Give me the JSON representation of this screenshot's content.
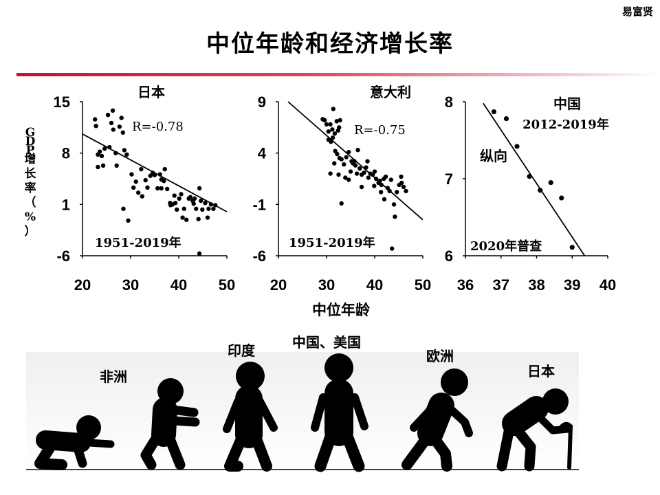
{
  "header": {
    "author": "易富贤",
    "title": "中位年龄和经济增长率"
  },
  "chart_data": [
    {
      "type": "scatter",
      "name": "japan",
      "label": "日本",
      "period": "1951-2019年",
      "r_text": "R=-0.78",
      "xlim": [
        20,
        50
      ],
      "ylim": [
        -6,
        15
      ],
      "xticks": [
        "20",
        "30",
        "40",
        "50"
      ],
      "yticks": [
        "15",
        "8",
        "1",
        "-6"
      ],
      "ylabel": "GDP增长率（%）",
      "trend": [
        [
          20,
          10.6
        ],
        [
          50,
          0.0
        ]
      ],
      "points": [
        [
          22.6,
          12.6
        ],
        [
          22.8,
          11.7
        ],
        [
          23.2,
          7.8
        ],
        [
          23.6,
          8.2
        ],
        [
          23.2,
          6.1
        ],
        [
          24.0,
          7.6
        ],
        [
          24.3,
          6.3
        ],
        [
          24.6,
          8.6
        ],
        [
          25.3,
          13.2
        ],
        [
          25.6,
          8.8
        ],
        [
          26.0,
          12.1
        ],
        [
          26.4,
          11.2
        ],
        [
          26.9,
          8.0
        ],
        [
          26.3,
          13.8
        ],
        [
          27.1,
          6.3
        ],
        [
          27.7,
          11.6
        ],
        [
          28.1,
          12.8
        ],
        [
          28.4,
          10.8
        ],
        [
          28.7,
          8.4
        ],
        [
          29.2,
          7.8
        ],
        [
          28.5,
          0.4
        ],
        [
          29.5,
          -1.2
        ],
        [
          30.2,
          5.1
        ],
        [
          30.6,
          3.3
        ],
        [
          31.1,
          4.1
        ],
        [
          31.6,
          2.6
        ],
        [
          32.2,
          5.8
        ],
        [
          32.4,
          2.1
        ],
        [
          33.1,
          4.3
        ],
        [
          33.5,
          3.3
        ],
        [
          34.1,
          4.9
        ],
        [
          34.6,
          5.3
        ],
        [
          35.0,
          5.0
        ],
        [
          35.6,
          3.2
        ],
        [
          36.1,
          5.1
        ],
        [
          36.4,
          4.4
        ],
        [
          36.9,
          4.2
        ],
        [
          37.6,
          3.1
        ],
        [
          38.2,
          1.2
        ],
        [
          38.7,
          1.0
        ],
        [
          39.1,
          2.2
        ],
        [
          39.6,
          0.3
        ],
        [
          40.1,
          1.8
        ],
        [
          40.5,
          2.4
        ],
        [
          41.1,
          0.4
        ],
        [
          41.6,
          -1.1
        ],
        [
          42.1,
          1.8
        ],
        [
          42.4,
          2.0
        ],
        [
          43.1,
          1.1
        ],
        [
          43.6,
          0.4
        ],
        [
          44.1,
          -1.0
        ],
        [
          44.6,
          1.5
        ],
        [
          44.9,
          0.3
        ],
        [
          45.5,
          1.2
        ],
        [
          46.2,
          0.4
        ],
        [
          46.7,
          1.0
        ],
        [
          47.2,
          0.4
        ],
        [
          47.6,
          0.9
        ],
        [
          38.3,
          0.9
        ],
        [
          39.3,
          1.2
        ],
        [
          40.8,
          -0.8
        ],
        [
          42.9,
          1.5
        ],
        [
          43.3,
          1.8
        ],
        [
          44.3,
          3.2
        ],
        [
          46.0,
          -0.8
        ],
        [
          44.3,
          -5.7
        ],
        [
          36.4,
          3.2
        ],
        [
          37.1,
          5.8
        ]
      ]
    },
    {
      "type": "scatter",
      "name": "italy",
      "label": "意大利",
      "period": "1951-2019年",
      "r_text": "R=-0.75",
      "xlim": [
        20,
        50
      ],
      "ylim": [
        -6,
        9
      ],
      "xticks": [
        "20",
        "30",
        "40",
        "50"
      ],
      "yticks": [
        "9",
        "4",
        "-1",
        "-6"
      ],
      "trend": [
        [
          22,
          9.0
        ],
        [
          50,
          -2.5
        ]
      ],
      "points": [
        [
          29.2,
          7.3
        ],
        [
          29.6,
          7.2
        ],
        [
          30.0,
          6.8
        ],
        [
          30.4,
          6.1
        ],
        [
          30.8,
          6.8
        ],
        [
          31.2,
          6.3
        ],
        [
          31.4,
          8.3
        ],
        [
          31.7,
          5.9
        ],
        [
          32.1,
          7.1
        ],
        [
          32.4,
          6.2
        ],
        [
          32.6,
          6.5
        ],
        [
          32.8,
          7.2
        ],
        [
          30.4,
          5.3
        ],
        [
          30.9,
          5.1
        ],
        [
          31.3,
          5.5
        ],
        [
          31.8,
          4.2
        ],
        [
          32.2,
          3.9
        ],
        [
          32.7,
          3.5
        ],
        [
          33.1,
          3.4
        ],
        [
          33.6,
          2.9
        ],
        [
          34.1,
          3.6
        ],
        [
          34.6,
          4.1
        ],
        [
          35.2,
          3.2
        ],
        [
          35.5,
          3.0
        ],
        [
          36.0,
          2.8
        ],
        [
          36.5,
          4.3
        ],
        [
          36.9,
          2.5
        ],
        [
          37.3,
          1.9
        ],
        [
          37.8,
          2.1
        ],
        [
          38.2,
          2.6
        ],
        [
          38.7,
          1.6
        ],
        [
          39.1,
          2.0
        ],
        [
          39.6,
          1.9
        ],
        [
          39.9,
          0.8
        ],
        [
          40.3,
          1.5
        ],
        [
          40.8,
          1.1
        ],
        [
          41.1,
          1.3
        ],
        [
          41.4,
          0.9
        ],
        [
          41.9,
          1.5
        ],
        [
          42.3,
          1.7
        ],
        [
          42.7,
          0.6
        ],
        [
          43.1,
          0.3
        ],
        [
          43.4,
          1.4
        ],
        [
          44.0,
          -1.0
        ],
        [
          44.2,
          -2.2
        ],
        [
          44.6,
          0.2
        ],
        [
          45.1,
          0.9
        ],
        [
          45.5,
          1.7
        ],
        [
          46.0,
          0.7
        ],
        [
          46.5,
          0.3
        ],
        [
          30.8,
          2.0
        ],
        [
          31.6,
          3.0
        ],
        [
          32.5,
          1.9
        ],
        [
          33.1,
          -0.9
        ],
        [
          34.6,
          1.4
        ],
        [
          35.0,
          2.2
        ],
        [
          35.8,
          3.2
        ],
        [
          36.3,
          2.0
        ],
        [
          37.3,
          0.7
        ],
        [
          38.5,
          3.2
        ],
        [
          40.0,
          2.2
        ],
        [
          41.3,
          0.2
        ],
        [
          42.0,
          -0.5
        ],
        [
          43.6,
          -5.3
        ],
        [
          45.6,
          1.1
        ],
        [
          33.9,
          1.6
        ]
      ]
    },
    {
      "type": "scatter",
      "name": "china",
      "label": "中国",
      "period": "2012-2019年",
      "note_vertical": "纵向",
      "note_census": "2020年普查",
      "xlim": [
        36,
        40
      ],
      "ylim": [
        6,
        8
      ],
      "xticks": [
        "36",
        "37",
        "38",
        "39",
        "40"
      ],
      "yticks": [
        "8",
        "7",
        "6"
      ],
      "trend": [
        [
          36.5,
          7.98
        ],
        [
          39.35,
          6.0
        ]
      ],
      "points": [
        [
          36.8,
          7.87
        ],
        [
          37.15,
          7.78
        ],
        [
          37.45,
          7.42
        ],
        [
          37.8,
          7.03
        ],
        [
          38.1,
          6.85
        ],
        [
          38.4,
          6.95
        ],
        [
          38.7,
          6.75
        ],
        [
          39.0,
          6.11
        ]
      ]
    }
  ],
  "axes": {
    "xlabel": "中位年龄"
  },
  "stages": [
    {
      "name": "africa",
      "label": "非洲"
    },
    {
      "name": "india",
      "label": "印度"
    },
    {
      "name": "china-us",
      "label": "中国、美国"
    },
    {
      "name": "europe",
      "label": "欧洲"
    },
    {
      "name": "japan",
      "label": "日本"
    }
  ],
  "colors": {
    "accent": "#c8102e",
    "ink": "#000000"
  }
}
